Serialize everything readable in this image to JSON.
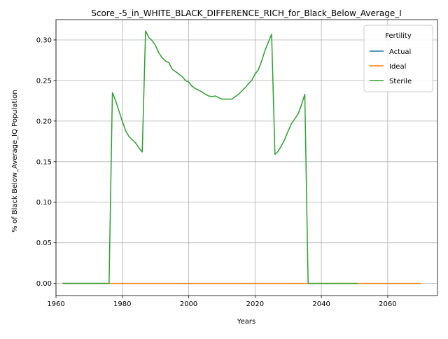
{
  "chart_data": {
    "type": "line",
    "title": "Score_-5_in_WHITE_BLACK_DIFFERENCE_RICH_for_Black_Below_Average_I",
    "xlabel": "Years",
    "ylabel": "% of Black Below_Average_IQ Population",
    "xlim": [
      1960,
      2075
    ],
    "ylim": [
      -0.015,
      0.325
    ],
    "xticks": [
      1960,
      1980,
      2000,
      2020,
      2040,
      2060
    ],
    "yticks": [
      0.0,
      0.05,
      0.1,
      0.15,
      0.2,
      0.25,
      0.3
    ],
    "ytick_labels": [
      "0.00",
      "0.05",
      "0.10",
      "0.15",
      "0.20",
      "0.25",
      "0.30"
    ],
    "grid": true,
    "legend": {
      "title": "Fertility",
      "placement": "top-right"
    },
    "series": [
      {
        "name": "Actual",
        "color": "#1f77b4",
        "x": [
          1962,
          1976
        ],
        "y": [
          0.0,
          0.0
        ]
      },
      {
        "name": "Ideal",
        "color": "#ff7f0e",
        "x": [
          1962,
          2070
        ],
        "y": [
          0.0,
          0.0
        ]
      },
      {
        "name": "Sterile",
        "color": "#2ca02c",
        "x": [
          1962,
          1976,
          1977,
          1978,
          1979,
          1980,
          1981,
          1982,
          1983,
          1984,
          1985,
          1986,
          1987,
          1988,
          1989,
          1990,
          1991,
          1992,
          1993,
          1994,
          1995,
          1996,
          1997,
          1998,
          1999,
          2000,
          2001,
          2002,
          2003,
          2004,
          2005,
          2006,
          2007,
          2008,
          2009,
          2010,
          2011,
          2012,
          2013,
          2014,
          2015,
          2016,
          2017,
          2018,
          2019,
          2020,
          2021,
          2022,
          2023,
          2024,
          2025,
          2026,
          2027,
          2028,
          2029,
          2030,
          2031,
          2032,
          2033,
          2034,
          2035,
          2036,
          2051
        ],
        "y": [
          0.0,
          0.0,
          0.235,
          0.225,
          0.212,
          0.2,
          0.188,
          0.181,
          0.177,
          0.173,
          0.167,
          0.162,
          0.311,
          0.303,
          0.299,
          0.293,
          0.284,
          0.278,
          0.274,
          0.272,
          0.264,
          0.261,
          0.258,
          0.255,
          0.25,
          0.248,
          0.243,
          0.24,
          0.238,
          0.236,
          0.233,
          0.231,
          0.23,
          0.231,
          0.229,
          0.227,
          0.227,
          0.227,
          0.227,
          0.23,
          0.233,
          0.237,
          0.241,
          0.246,
          0.25,
          0.258,
          0.263,
          0.274,
          0.287,
          0.297,
          0.307,
          0.159,
          0.163,
          0.17,
          0.178,
          0.188,
          0.197,
          0.203,
          0.209,
          0.22,
          0.233,
          0.0,
          0.0
        ]
      }
    ]
  }
}
